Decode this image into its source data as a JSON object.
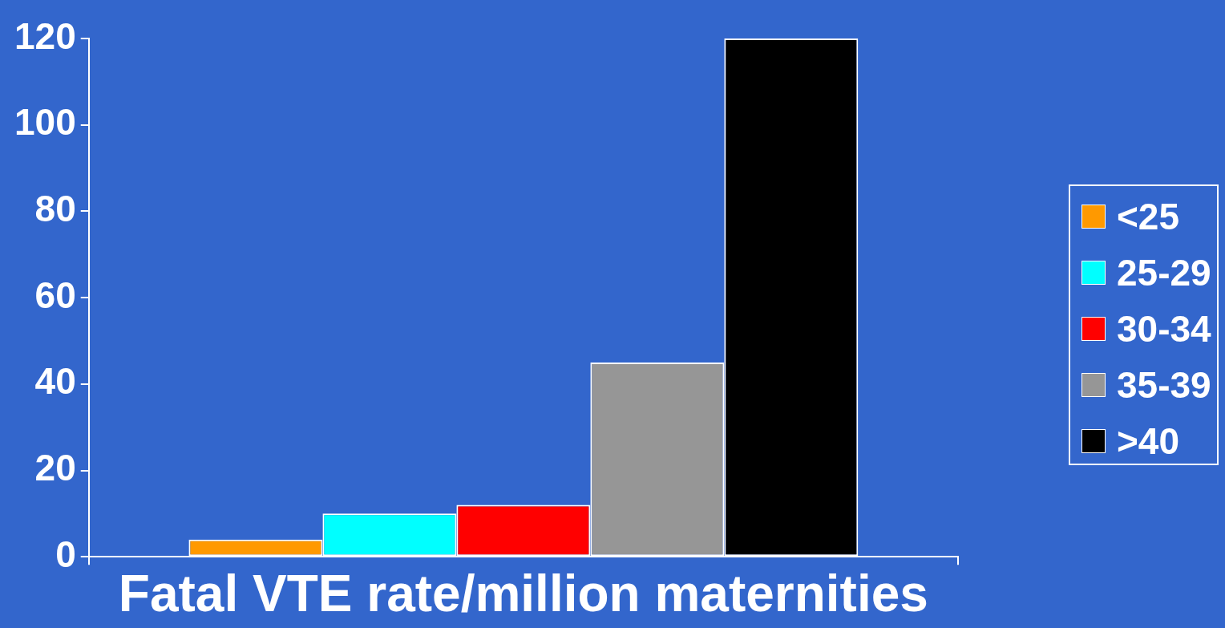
{
  "chart_data": {
    "type": "bar",
    "xlabel": "Fatal VTE rate/million maternities",
    "categories": [
      null
    ],
    "series": [
      {
        "name": "<25",
        "color": "#ff9900",
        "values": [
          4
        ]
      },
      {
        "name": "25-29",
        "color": "#00ffff",
        "values": [
          10
        ]
      },
      {
        "name": "30-34",
        "color": "#ff0000",
        "values": [
          12
        ]
      },
      {
        "name": "35-39",
        "color": "#969696",
        "values": [
          45
        ]
      },
      {
        "name": ">40",
        "color": "#000000",
        "values": [
          120
        ]
      }
    ],
    "ylim": [
      0,
      120
    ],
    "yticks": [
      0,
      20,
      40,
      60,
      80,
      100,
      120
    ],
    "grid": false,
    "legend": "right"
  }
}
